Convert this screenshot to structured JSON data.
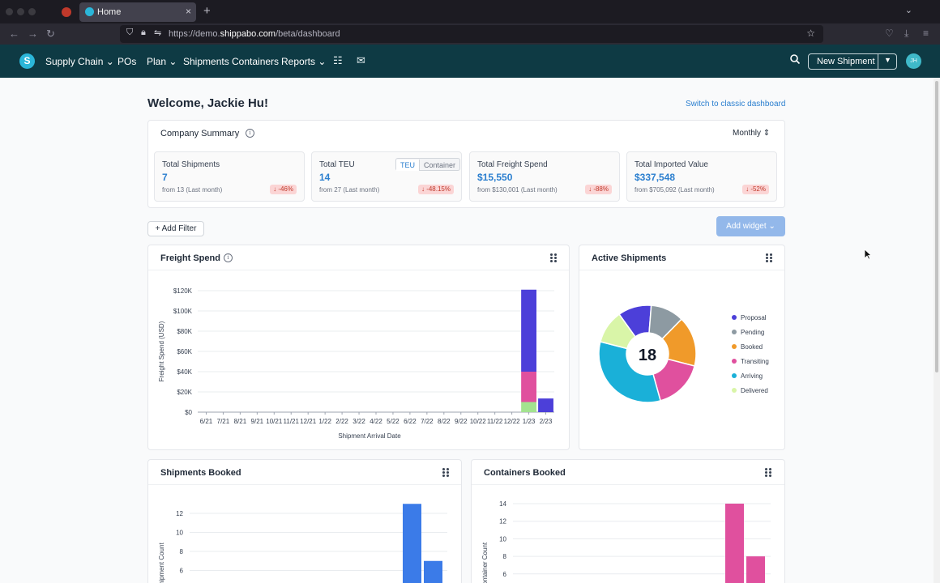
{
  "browser": {
    "tab_title": "Home",
    "url_prefix": "https://demo.",
    "url_domain": "shippabo.com",
    "url_path": "/beta/dashboard"
  },
  "nav": {
    "logo_letter": "S",
    "items": [
      "Supply Chain",
      "POs",
      "Plan",
      "Shipments",
      "Containers",
      "Reports"
    ],
    "new_shipment_label": "New Shipment",
    "avatar_initials": "JH"
  },
  "page": {
    "welcome": "Welcome, Jackie Hu!",
    "classic_link": "Switch to classic dashboard",
    "add_filter": "+ Add Filter",
    "add_widget": "Add widget"
  },
  "summary": {
    "title": "Company Summary",
    "period": "Monthly",
    "teu_toggle": [
      "TEU",
      "Container"
    ],
    "stats": [
      {
        "label": "Total Shipments",
        "value": "7",
        "from": "from 13 (Last month)",
        "change": "↓ -46%"
      },
      {
        "label": "Total TEU",
        "value": "14",
        "from": "from 27 (Last month)",
        "change": "↓ -48.15%"
      },
      {
        "label": "Total Freight Spend",
        "value": "$15,550",
        "from": "from $130,001 (Last month)",
        "change": "↓ -88%"
      },
      {
        "label": "Total Imported Value",
        "value": "$337,548",
        "from": "from $705,092 (Last month)",
        "change": "↓ -52%"
      }
    ]
  },
  "chart_data": [
    {
      "type": "bar",
      "title": "Freight Spend",
      "xlabel": "Shipment Arrival Date",
      "ylabel": "Freight Spend (USD)",
      "ylim": [
        0,
        120000
      ],
      "yticks": [
        0,
        20000,
        40000,
        60000,
        80000,
        100000,
        120000
      ],
      "ytick_labels": [
        "$0",
        "$20K",
        "$40K",
        "$60K",
        "$80K",
        "$100K",
        "$120K"
      ],
      "categories": [
        "6/21",
        "7/21",
        "8/21",
        "9/21",
        "10/21",
        "11/21",
        "12/21",
        "1/22",
        "2/22",
        "3/22",
        "4/22",
        "5/22",
        "6/22",
        "7/22",
        "8/22",
        "9/22",
        "10/22",
        "11/22",
        "12/22",
        "1/23",
        "2/23"
      ],
      "stacked": true,
      "series": [
        {
          "color": "#a3e38f",
          "values": [
            0,
            0,
            0,
            0,
            0,
            0,
            0,
            0,
            0,
            0,
            0,
            0,
            0,
            0,
            0,
            0,
            0,
            0,
            0,
            10000,
            0
          ]
        },
        {
          "color": "#e0509e",
          "values": [
            0,
            0,
            0,
            0,
            0,
            0,
            0,
            0,
            0,
            0,
            0,
            0,
            0,
            0,
            0,
            0,
            0,
            0,
            0,
            30000,
            0
          ]
        },
        {
          "color": "#4c3fd9",
          "values": [
            0,
            0,
            0,
            0,
            0,
            0,
            0,
            0,
            0,
            0,
            0,
            0,
            0,
            0,
            0,
            0,
            0,
            0,
            0,
            81000,
            13500
          ]
        }
      ],
      "grid": true
    },
    {
      "type": "pie",
      "title": "Active Shipments",
      "center_label": "18",
      "legend": "right",
      "labels": [
        "Proposal",
        "Pending",
        "Booked",
        "Transiting",
        "Arriving",
        "Delivered"
      ],
      "values": [
        2,
        2,
        3,
        3,
        6,
        2
      ],
      "colors": [
        "#4c3fd9",
        "#8d9aa2",
        "#f09a2a",
        "#e0509e",
        "#1ab0d8",
        "#d9f5a8"
      ]
    },
    {
      "type": "bar",
      "title": "Shipments Booked",
      "ylabel": "Shipment Count",
      "yticks": [
        6,
        8,
        10,
        12
      ],
      "values": [
        13,
        7
      ],
      "color": "#3b7be8"
    },
    {
      "type": "bar",
      "title": "Containers Booked",
      "ylabel": "Container Count",
      "yticks": [
        6,
        8,
        10,
        12,
        14
      ],
      "values": [
        14,
        8
      ],
      "color": "#e0509e"
    }
  ]
}
